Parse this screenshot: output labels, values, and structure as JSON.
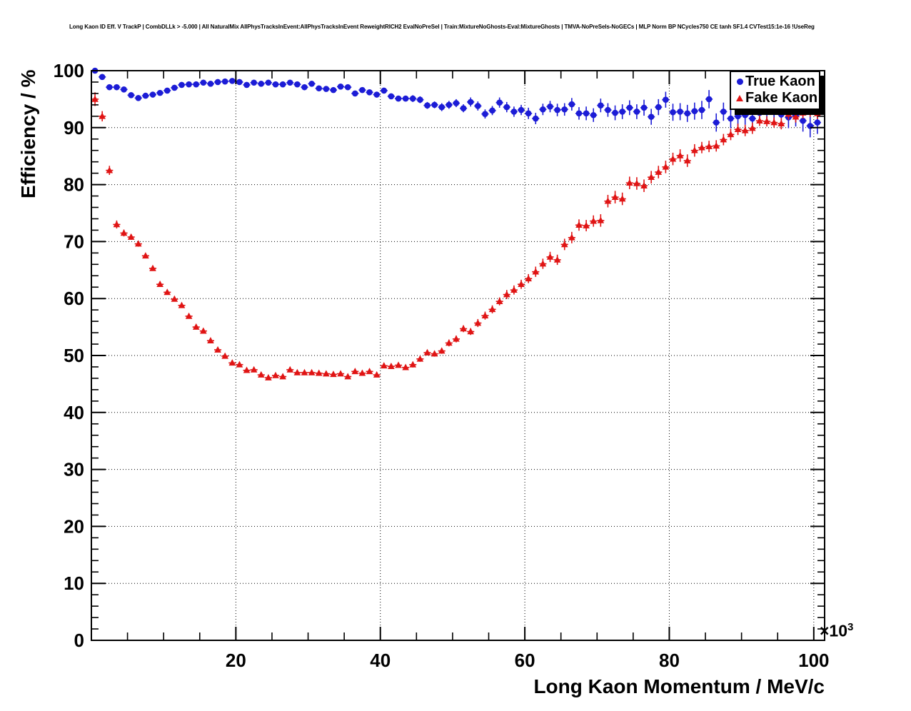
{
  "title": "Long Kaon ID Eff. V TrackP | CombDLLk > -5.000 | All NaturalMix AllPhysTracksInEvent:AllPhysTracksInEvent ReweightRICH2 EvalNoPreSel | Train:MixtureNoGhosts-Eval:MixtureGhosts | TMVA-NoPreSels-NoGECs | MLP Norm BP NCycles750 CE tanh SF1.4 CVTest15:1e-16 !UseReg",
  "legend": {
    "items": [
      {
        "label": "True Kaon",
        "marker": "circle",
        "color": "#1c1cd6"
      },
      {
        "label": "Fake Kaon",
        "marker": "triangle",
        "color": "#e01414"
      }
    ]
  },
  "axes": {
    "ylabel": "Efficiency / %",
    "xlabel": "Long Kaon Momentum / MeV/c",
    "x_multiplier_base": "×10",
    "x_multiplier_exp": "3"
  },
  "chart_data": {
    "type": "scatter",
    "title": "Long Kaon ID Eff. V TrackP | CombDLLk > -5.000 | All NaturalMix AllPhysTracksInEvent:AllPhysTracksInEvent ReweightRICH2 EvalNoPreSel | Train:MixtureNoGhosts-Eval:MixtureGhosts | TMVA-NoPreSels-NoGECs | MLP Norm BP NCycles750 CE tanh SF1.4 CVTest15:1e-16 !UseReg",
    "xlabel": "Long Kaon Momentum / MeV/c",
    "ylabel": "Efficiency / %",
    "x_unit": "10^3 MeV/c",
    "xlim": [
      0,
      101.5
    ],
    "ylim": [
      0,
      100
    ],
    "x_major_ticks": [
      20,
      40,
      60,
      80,
      100
    ],
    "x_minor_step": 5,
    "y_major_ticks": [
      0,
      10,
      20,
      30,
      40,
      50,
      60,
      70,
      80,
      90,
      100
    ],
    "y_minor_step": 2,
    "grid": "dotted-at-major-divisions",
    "legend_position": "top-right",
    "bin_half_width": 0.5,
    "x": [
      0.5,
      1.5,
      2.5,
      3.5,
      4.5,
      5.5,
      6.5,
      7.5,
      8.5,
      9.5,
      10.5,
      11.5,
      12.5,
      13.5,
      14.5,
      15.5,
      16.5,
      17.5,
      18.5,
      19.5,
      20.5,
      21.5,
      22.5,
      23.5,
      24.5,
      25.5,
      26.5,
      27.5,
      28.5,
      29.5,
      30.5,
      31.5,
      32.5,
      33.5,
      34.5,
      35.5,
      36.5,
      37.5,
      38.5,
      39.5,
      40.5,
      41.5,
      42.5,
      43.5,
      44.5,
      45.5,
      46.5,
      47.5,
      48.5,
      49.5,
      50.5,
      51.5,
      52.5,
      53.5,
      54.5,
      55.5,
      56.5,
      57.5,
      58.5,
      59.5,
      60.5,
      61.5,
      62.5,
      63.5,
      64.5,
      65.5,
      66.5,
      67.5,
      68.5,
      69.5,
      70.5,
      71.5,
      72.5,
      73.5,
      74.5,
      75.5,
      76.5,
      77.5,
      78.5,
      79.5,
      80.5,
      81.5,
      82.5,
      83.5,
      84.5,
      85.5,
      86.5,
      87.5,
      88.5,
      89.5,
      90.5,
      91.5,
      92.5,
      93.5,
      94.5,
      95.5,
      96.5,
      97.5,
      98.5,
      99.5,
      100.5
    ],
    "series": [
      {
        "name": "True Kaon",
        "marker": "circle",
        "color": "#1c1cd6",
        "values": [
          100.0,
          98.9,
          97.1,
          97.1,
          96.7,
          95.7,
          95.2,
          95.6,
          95.8,
          96.1,
          96.5,
          97.0,
          97.5,
          97.6,
          97.6,
          97.9,
          97.7,
          98.0,
          98.1,
          98.2,
          98.0,
          97.5,
          97.9,
          97.7,
          97.9,
          97.6,
          97.6,
          97.9,
          97.6,
          97.1,
          97.7,
          96.9,
          96.8,
          96.6,
          97.2,
          97.1,
          96.0,
          96.6,
          96.2,
          95.8,
          96.5,
          95.5,
          95.1,
          95.1,
          95.1,
          94.9,
          93.9,
          94.0,
          93.6,
          94.0,
          94.3,
          93.4,
          94.5,
          93.8,
          92.4,
          93.0,
          94.4,
          93.6,
          92.8,
          93.1,
          92.5,
          91.6,
          93.2,
          93.7,
          93.1,
          93.2,
          94.1,
          92.5,
          92.5,
          92.2,
          93.9,
          93.1,
          92.6,
          92.8,
          93.5,
          92.8,
          93.5,
          91.9,
          93.6,
          94.9,
          92.7,
          92.8,
          92.5,
          92.9,
          93.1,
          95.0,
          90.9,
          92.8,
          91.6,
          92.0,
          92.2,
          91.6,
          92.6,
          92.8,
          93.0,
          92.3,
          91.8,
          92.1,
          91.2,
          90.3,
          90.9
        ],
        "yerr": [
          0.2,
          0.3,
          0.3,
          0.3,
          0.3,
          0.3,
          0.3,
          0.3,
          0.3,
          0.3,
          0.3,
          0.3,
          0.3,
          0.3,
          0.3,
          0.3,
          0.3,
          0.3,
          0.3,
          0.3,
          0.3,
          0.3,
          0.3,
          0.3,
          0.3,
          0.3,
          0.3,
          0.3,
          0.3,
          0.3,
          0.4,
          0.4,
          0.4,
          0.4,
          0.4,
          0.4,
          0.4,
          0.4,
          0.4,
          0.4,
          0.5,
          0.5,
          0.5,
          0.5,
          0.6,
          0.6,
          0.6,
          0.6,
          0.7,
          0.7,
          0.7,
          0.7,
          0.8,
          0.8,
          0.8,
          0.8,
          0.9,
          0.9,
          0.9,
          0.9,
          1.0,
          1.0,
          1.0,
          1.0,
          1.1,
          1.1,
          1.1,
          1.1,
          1.2,
          1.2,
          1.2,
          1.2,
          1.3,
          1.3,
          1.3,
          1.3,
          1.4,
          1.4,
          1.4,
          1.4,
          1.5,
          1.5,
          1.5,
          1.5,
          1.6,
          1.6,
          1.6,
          1.6,
          1.7,
          1.7,
          1.7,
          1.7,
          1.8,
          1.8,
          1.8,
          1.8,
          1.9,
          1.9,
          1.9,
          2.0,
          2.0
        ]
      },
      {
        "name": "Fake Kaon",
        "marker": "triangle",
        "color": "#e01414",
        "values": [
          95.0,
          92.0,
          82.5,
          73.0,
          71.5,
          70.8,
          69.6,
          67.5,
          65.3,
          62.5,
          61.1,
          59.9,
          58.8,
          56.9,
          55.0,
          54.3,
          52.6,
          51.0,
          49.9,
          48.7,
          48.4,
          47.4,
          47.5,
          46.6,
          46.1,
          46.5,
          46.3,
          47.5,
          47.0,
          47.0,
          47.0,
          46.9,
          46.8,
          46.7,
          46.8,
          46.3,
          47.2,
          46.9,
          47.2,
          46.6,
          48.2,
          48.1,
          48.3,
          47.9,
          48.4,
          49.4,
          50.5,
          50.3,
          50.8,
          52.2,
          52.9,
          54.7,
          54.2,
          55.7,
          57.0,
          58.1,
          59.5,
          60.7,
          61.5,
          62.5,
          63.5,
          64.7,
          66.1,
          67.3,
          66.8,
          69.5,
          70.7,
          72.9,
          72.8,
          73.6,
          73.7,
          77.1,
          77.8,
          77.5,
          80.3,
          80.2,
          79.8,
          81.3,
          82.2,
          83.1,
          84.5,
          85.1,
          84.2,
          86.0,
          86.5,
          86.7,
          86.8,
          87.9,
          88.8,
          89.7,
          89.5,
          89.9,
          91.2,
          91.1,
          90.9,
          90.7,
          92.4,
          91.9,
          92.6,
          92.9,
          92.5
        ],
        "yerr": [
          1.2,
          0.9,
          0.8,
          0.7,
          0.6,
          0.5,
          0.5,
          0.4,
          0.4,
          0.4,
          0.4,
          0.4,
          0.4,
          0.4,
          0.3,
          0.3,
          0.3,
          0.3,
          0.3,
          0.3,
          0.3,
          0.3,
          0.3,
          0.3,
          0.3,
          0.3,
          0.3,
          0.3,
          0.3,
          0.3,
          0.3,
          0.3,
          0.3,
          0.3,
          0.3,
          0.3,
          0.3,
          0.3,
          0.3,
          0.3,
          0.4,
          0.4,
          0.4,
          0.4,
          0.5,
          0.5,
          0.5,
          0.5,
          0.5,
          0.6,
          0.6,
          0.6,
          0.6,
          0.7,
          0.7,
          0.7,
          0.7,
          0.8,
          0.8,
          0.8,
          0.8,
          0.9,
          0.9,
          0.9,
          0.9,
          1.0,
          1.0,
          1.0,
          1.0,
          1.0,
          1.1,
          1.1,
          1.1,
          1.1,
          1.1,
          1.1,
          1.1,
          1.1,
          1.1,
          1.1,
          1.1,
          1.1,
          1.1,
          1.1,
          1.0,
          1.0,
          1.0,
          1.0,
          1.0,
          1.0,
          1.0,
          1.0,
          0.9,
          0.9,
          0.9,
          1.0,
          1.0,
          1.0,
          1.0,
          1.0,
          1.0
        ]
      }
    ]
  }
}
